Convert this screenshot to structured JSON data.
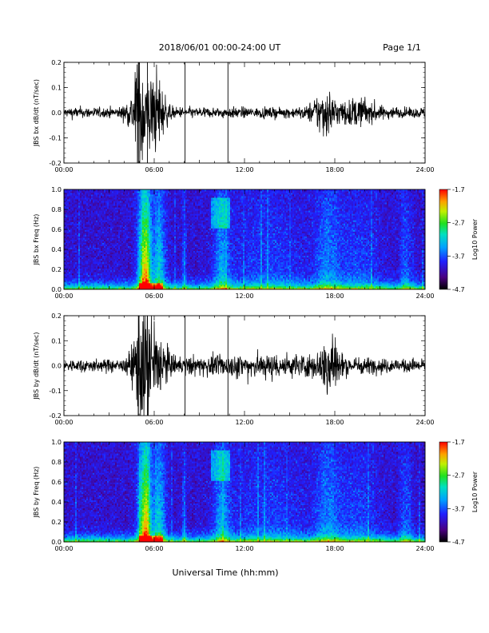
{
  "header": {
    "date_range": "2018/06/01   00:00-24:00 UT",
    "page": "Page 1/1"
  },
  "xaxis": {
    "label": "Universal Time (hh:mm)",
    "tick_labels": [
      "00:00",
      "06:00",
      "12:00",
      "18:00",
      "24:00"
    ]
  },
  "colorbar": {
    "title": "Log10 Power",
    "tick_labels": [
      "-1.7",
      "-2.7",
      "-3.7",
      "-4.7"
    ],
    "range": [
      -4.7,
      -1.7
    ]
  },
  "chart_data": [
    {
      "type": "line",
      "title": "",
      "ylabel": "JBS bx dB/dt (nT/sec)",
      "xlim": [
        0,
        24
      ],
      "ylim": [
        -0.2,
        0.2
      ],
      "ytick_labels": [
        "0.2",
        "0.1",
        "0.0",
        "-0.1",
        "-0.2"
      ],
      "description": "induction magnetometer bx time series",
      "bursts": [
        {
          "t": 5.0,
          "width": 0.25,
          "amp": 0.26
        },
        {
          "t": 5.4,
          "width": 0.9,
          "amp": 0.18
        },
        {
          "t": 6.3,
          "width": 0.5,
          "amp": 0.09
        },
        {
          "t": 17.3,
          "width": 0.8,
          "amp": 0.09
        },
        {
          "t": 19.5,
          "width": 1.2,
          "amp": 0.05
        }
      ],
      "spikes": [
        4.95,
        5.55,
        8.05,
        10.9
      ],
      "noise_amp": 0.025
    },
    {
      "type": "heatmap",
      "title": "",
      "ylabel": "JBS bx Freq (Hz)",
      "xlim": [
        0,
        24
      ],
      "ylim": [
        0.0,
        1.0
      ],
      "ytick_labels": [
        "1.0",
        "0.8",
        "0.6",
        "0.4",
        "0.2",
        "0.0"
      ],
      "zlim": [
        -4.7,
        -1.7
      ]
    },
    {
      "type": "line",
      "title": "",
      "ylabel": "JBS by dB/dt (nT/sec)",
      "xlim": [
        0,
        24
      ],
      "ylim": [
        -0.2,
        0.2
      ],
      "ytick_labels": [
        "0.2",
        "0.1",
        "0.0",
        "-0.1",
        "-0.2"
      ],
      "description": "induction magnetometer by time series",
      "bursts": [
        {
          "t": 5.2,
          "width": 0.6,
          "amp": 0.25
        },
        {
          "t": 6.0,
          "width": 0.8,
          "amp": 0.16
        },
        {
          "t": 17.7,
          "width": 0.5,
          "amp": 0.18
        },
        {
          "t": 13.5,
          "width": 6.0,
          "amp": 0.03
        }
      ],
      "spikes": [
        4.95,
        5.55,
        8.05,
        10.9
      ],
      "noise_amp": 0.03
    },
    {
      "type": "heatmap",
      "title": "",
      "ylabel": "JBS by Freq (Hz)",
      "xlim": [
        0,
        24
      ],
      "ylim": [
        0.0,
        1.0
      ],
      "ytick_labels": [
        "1.0",
        "0.8",
        "0.6",
        "0.4",
        "0.2",
        "0.0"
      ],
      "zlim": [
        -4.7,
        -1.7
      ]
    }
  ]
}
